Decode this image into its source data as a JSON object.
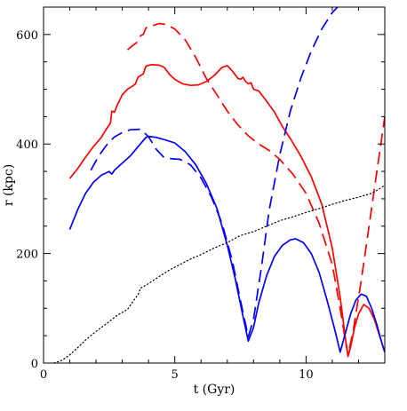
{
  "chart_data": {
    "type": "line",
    "title": "",
    "xlabel": "t (Gyr)",
    "ylabel": "r (kpc)",
    "xlim": [
      0,
      13
    ],
    "ylim": [
      0,
      650
    ],
    "x_ticks": [
      0,
      5,
      10
    ],
    "y_ticks": [
      0,
      200,
      400,
      600
    ],
    "x_minor_step": 1,
    "y_minor_step": 50,
    "grid": false,
    "legend": "none",
    "series": [
      {
        "color": "#ff0000",
        "style": "solid",
        "points": [
          [
            1.0,
            337
          ],
          [
            1.3,
            355
          ],
          [
            1.6,
            376
          ],
          [
            1.9,
            395
          ],
          [
            2.2,
            412
          ],
          [
            2.4,
            428
          ],
          [
            2.55,
            438
          ],
          [
            2.6,
            460
          ],
          [
            2.7,
            458
          ],
          [
            2.8,
            470
          ],
          [
            3.0,
            490
          ],
          [
            3.2,
            500
          ],
          [
            3.4,
            506
          ],
          [
            3.5,
            510
          ],
          [
            3.6,
            522
          ],
          [
            3.8,
            528
          ],
          [
            3.9,
            542
          ],
          [
            4.1,
            545
          ],
          [
            4.4,
            544
          ],
          [
            4.6,
            540
          ],
          [
            4.8,
            527
          ],
          [
            5.0,
            518
          ],
          [
            5.3,
            510
          ],
          [
            5.6,
            507
          ],
          [
            5.9,
            508
          ],
          [
            6.2,
            514
          ],
          [
            6.5,
            525
          ],
          [
            6.8,
            540
          ],
          [
            7.0,
            543
          ],
          [
            7.2,
            533
          ],
          [
            7.4,
            520
          ],
          [
            7.5,
            518
          ],
          [
            7.6,
            522
          ],
          [
            7.7,
            514
          ],
          [
            7.8,
            510
          ],
          [
            7.9,
            512
          ],
          [
            8.0,
            500
          ],
          [
            8.2,
            497
          ],
          [
            8.5,
            478
          ],
          [
            8.8,
            458
          ],
          [
            9.1,
            432
          ],
          [
            9.4,
            410
          ],
          [
            9.8,
            378
          ],
          [
            10.2,
            340
          ],
          [
            10.6,
            290
          ],
          [
            11.0,
            210
          ],
          [
            11.3,
            120
          ],
          [
            11.5,
            45
          ],
          [
            11.6,
            12
          ],
          [
            11.7,
            30
          ],
          [
            11.85,
            65
          ],
          [
            12.0,
            90
          ],
          [
            12.2,
            107
          ],
          [
            12.4,
            100
          ],
          [
            12.6,
            80
          ],
          [
            12.8,
            50
          ],
          [
            13.0,
            20
          ]
        ]
      },
      {
        "color": "#ff0000",
        "style": "dashed",
        "points": [
          [
            3.2,
            572
          ],
          [
            3.4,
            580
          ],
          [
            3.6,
            587
          ],
          [
            3.7,
            598
          ],
          [
            3.8,
            600
          ],
          [
            3.9,
            612
          ],
          [
            4.1,
            615
          ],
          [
            4.4,
            620
          ],
          [
            4.7,
            618
          ],
          [
            5.0,
            610
          ],
          [
            5.4,
            590
          ],
          [
            5.8,
            558
          ],
          [
            6.2,
            520
          ],
          [
            6.6,
            490
          ],
          [
            7.0,
            460
          ],
          [
            7.4,
            435
          ],
          [
            7.8,
            415
          ],
          [
            8.2,
            400
          ],
          [
            8.6,
            388
          ],
          [
            9.0,
            372
          ],
          [
            9.5,
            345
          ],
          [
            10.0,
            310
          ],
          [
            10.5,
            255
          ],
          [
            11.0,
            180
          ],
          [
            11.3,
            100
          ],
          [
            11.5,
            40
          ],
          [
            11.6,
            15
          ],
          [
            11.8,
            60
          ],
          [
            12.1,
            150
          ],
          [
            12.4,
            250
          ],
          [
            12.7,
            350
          ],
          [
            13.0,
            450
          ]
        ]
      },
      {
        "color": "#0000ff",
        "style": "solid",
        "points": [
          [
            1.0,
            244
          ],
          [
            1.3,
            280
          ],
          [
            1.6,
            310
          ],
          [
            1.9,
            330
          ],
          [
            2.2,
            343
          ],
          [
            2.5,
            350
          ],
          [
            2.6,
            345
          ],
          [
            2.7,
            352
          ],
          [
            3.0,
            365
          ],
          [
            3.3,
            378
          ],
          [
            3.6,
            395
          ],
          [
            3.9,
            412
          ],
          [
            4.0,
            414
          ],
          [
            4.3,
            412
          ],
          [
            4.6,
            408
          ],
          [
            5.0,
            402
          ],
          [
            5.4,
            386
          ],
          [
            5.8,
            362
          ],
          [
            6.2,
            328
          ],
          [
            6.6,
            283
          ],
          [
            7.0,
            215
          ],
          [
            7.3,
            155
          ],
          [
            7.6,
            85
          ],
          [
            7.8,
            40
          ],
          [
            8.0,
            65
          ],
          [
            8.2,
            110
          ],
          [
            8.5,
            160
          ],
          [
            8.8,
            195
          ],
          [
            9.1,
            215
          ],
          [
            9.4,
            225
          ],
          [
            9.6,
            227
          ],
          [
            9.9,
            220
          ],
          [
            10.2,
            200
          ],
          [
            10.5,
            165
          ],
          [
            10.8,
            115
          ],
          [
            11.1,
            60
          ],
          [
            11.3,
            20
          ],
          [
            11.5,
            55
          ],
          [
            11.7,
            90
          ],
          [
            11.9,
            115
          ],
          [
            12.1,
            126
          ],
          [
            12.3,
            122
          ],
          [
            12.5,
            100
          ],
          [
            12.7,
            70
          ],
          [
            12.9,
            35
          ],
          [
            13.0,
            20
          ]
        ]
      },
      {
        "color": "#0000ff",
        "style": "dashed",
        "points": [
          [
            1.8,
            352
          ],
          [
            2.1,
            378
          ],
          [
            2.4,
            398
          ],
          [
            2.7,
            413
          ],
          [
            3.0,
            421
          ],
          [
            3.3,
            426
          ],
          [
            3.7,
            427
          ],
          [
            4.0,
            413
          ],
          [
            4.3,
            390
          ],
          [
            4.6,
            375
          ],
          [
            4.9,
            373
          ],
          [
            5.2,
            372
          ],
          [
            5.6,
            362
          ],
          [
            6.0,
            338
          ],
          [
            6.4,
            303
          ],
          [
            6.8,
            255
          ],
          [
            7.2,
            185
          ],
          [
            7.5,
            115
          ],
          [
            7.8,
            48
          ],
          [
            8.0,
            80
          ],
          [
            8.3,
            175
          ],
          [
            8.6,
            280
          ],
          [
            9.0,
            380
          ],
          [
            9.4,
            460
          ],
          [
            9.8,
            520
          ],
          [
            10.2,
            570
          ],
          [
            10.6,
            610
          ],
          [
            11.0,
            640
          ],
          [
            11.2,
            650
          ]
        ]
      },
      {
        "color": "#000000",
        "style": "dotted",
        "points": [
          [
            0.4,
            0
          ],
          [
            0.7,
            5
          ],
          [
            1.0,
            15
          ],
          [
            1.3,
            28
          ],
          [
            1.6,
            42
          ],
          [
            2.0,
            58
          ],
          [
            2.4,
            72
          ],
          [
            2.8,
            87
          ],
          [
            3.2,
            98
          ],
          [
            3.4,
            112
          ],
          [
            3.6,
            125
          ],
          [
            3.7,
            137
          ],
          [
            4.0,
            145
          ],
          [
            4.4,
            158
          ],
          [
            4.8,
            170
          ],
          [
            5.2,
            180
          ],
          [
            5.6,
            190
          ],
          [
            6.0,
            198
          ],
          [
            6.5,
            210
          ],
          [
            7.0,
            220
          ],
          [
            7.5,
            233
          ],
          [
            8.0,
            240
          ],
          [
            8.5,
            250
          ],
          [
            9.0,
            260
          ],
          [
            9.5,
            267
          ],
          [
            10.0,
            275
          ],
          [
            10.5,
            282
          ],
          [
            11.0,
            290
          ],
          [
            11.5,
            297
          ],
          [
            12.0,
            303
          ],
          [
            12.5,
            310
          ],
          [
            12.8,
            318
          ],
          [
            13.0,
            325
          ]
        ]
      }
    ]
  }
}
